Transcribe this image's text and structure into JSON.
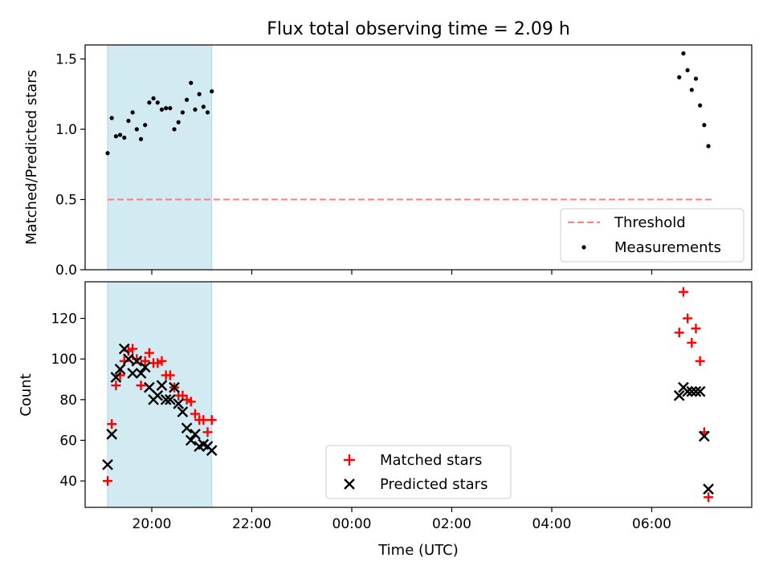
{
  "figure": {
    "title": "Flux total observing time = 2.09 h",
    "xlabel": "Time (UTC)",
    "shade_color": "#add8e6"
  },
  "chart_data": [
    {
      "type": "scatter",
      "ylabel": "Matched/Predicted stars",
      "xlim": [
        "18:40",
        "08:00"
      ],
      "ylim": [
        0,
        1.6
      ],
      "yticks": [
        0.0,
        0.5,
        1.0,
        1.5
      ],
      "ytick_labels": [
        "0.0",
        "0.5",
        "1.0",
        "1.5"
      ],
      "shaded_span": [
        "19:07",
        "21:12"
      ],
      "threshold": {
        "name": "Threshold",
        "value": 0.5,
        "x_range": [
          "19:07",
          "07:13"
        ],
        "color": "#ff7f7f",
        "style": "dashed"
      },
      "series": [
        {
          "name": "Measurements",
          "marker": "dot",
          "color": "#000000",
          "points": [
            {
              "x": "19:07",
              "y": 0.83
            },
            {
              "x": "19:12",
              "y": 1.08
            },
            {
              "x": "19:17",
              "y": 0.95
            },
            {
              "x": "19:22",
              "y": 0.96
            },
            {
              "x": "19:27",
              "y": 0.94
            },
            {
              "x": "19:32",
              "y": 1.06
            },
            {
              "x": "19:37",
              "y": 1.12
            },
            {
              "x": "19:42",
              "y": 1.0
            },
            {
              "x": "19:47",
              "y": 0.93
            },
            {
              "x": "19:52",
              "y": 1.03
            },
            {
              "x": "19:57",
              "y": 1.19
            },
            {
              "x": "20:02",
              "y": 1.22
            },
            {
              "x": "20:07",
              "y": 1.19
            },
            {
              "x": "20:12",
              "y": 1.14
            },
            {
              "x": "20:17",
              "y": 1.15
            },
            {
              "x": "20:22",
              "y": 1.15
            },
            {
              "x": "20:27",
              "y": 1.0
            },
            {
              "x": "20:32",
              "y": 1.05
            },
            {
              "x": "20:37",
              "y": 1.12
            },
            {
              "x": "20:42",
              "y": 1.21
            },
            {
              "x": "20:47",
              "y": 1.33
            },
            {
              "x": "20:52",
              "y": 1.14
            },
            {
              "x": "20:57",
              "y": 1.25
            },
            {
              "x": "21:02",
              "y": 1.16
            },
            {
              "x": "21:07",
              "y": 1.12
            },
            {
              "x": "21:12",
              "y": 1.27
            },
            {
              "x": "06:33",
              "y": 1.37
            },
            {
              "x": "06:38",
              "y": 1.54
            },
            {
              "x": "06:43",
              "y": 1.42
            },
            {
              "x": "06:48",
              "y": 1.28
            },
            {
              "x": "06:53",
              "y": 1.36
            },
            {
              "x": "06:58",
              "y": 1.17
            },
            {
              "x": "07:03",
              "y": 1.03
            },
            {
              "x": "07:08",
              "y": 0.88
            }
          ]
        }
      ],
      "legend": {
        "position": "lower-right",
        "entries": [
          "Threshold",
          "Measurements"
        ]
      }
    },
    {
      "type": "scatter",
      "ylabel": "Count",
      "xlabel": "Time (UTC)",
      "xlim": [
        "18:40",
        "08:00"
      ],
      "ylim": [
        27,
        138
      ],
      "yticks": [
        40,
        60,
        80,
        100,
        120
      ],
      "ytick_labels": [
        "40",
        "60",
        "80",
        "100",
        "120"
      ],
      "xticks": [
        "20:00",
        "22:00",
        "00:00",
        "02:00",
        "04:00",
        "06:00"
      ],
      "shaded_span": [
        "19:07",
        "21:12"
      ],
      "series": [
        {
          "name": "Matched stars",
          "marker": "plus",
          "color": "#ff0000",
          "points": [
            {
              "x": "19:07",
              "y": 40
            },
            {
              "x": "19:12",
              "y": 68
            },
            {
              "x": "19:17",
              "y": 87
            },
            {
              "x": "19:22",
              "y": 92
            },
            {
              "x": "19:27",
              "y": 99
            },
            {
              "x": "19:32",
              "y": 104
            },
            {
              "x": "19:37",
              "y": 105
            },
            {
              "x": "19:42",
              "y": 100
            },
            {
              "x": "19:47",
              "y": 87
            },
            {
              "x": "19:52",
              "y": 99
            },
            {
              "x": "19:57",
              "y": 103
            },
            {
              "x": "20:02",
              "y": 98
            },
            {
              "x": "20:07",
              "y": 98
            },
            {
              "x": "20:12",
              "y": 99
            },
            {
              "x": "20:17",
              "y": 92
            },
            {
              "x": "20:22",
              "y": 92
            },
            {
              "x": "20:27",
              "y": 86
            },
            {
              "x": "20:32",
              "y": 82
            },
            {
              "x": "20:37",
              "y": 82
            },
            {
              "x": "20:42",
              "y": 80
            },
            {
              "x": "20:47",
              "y": 79
            },
            {
              "x": "20:52",
              "y": 73
            },
            {
              "x": "20:57",
              "y": 70
            },
            {
              "x": "21:02",
              "y": 70
            },
            {
              "x": "21:07",
              "y": 64
            },
            {
              "x": "21:12",
              "y": 70
            },
            {
              "x": "06:33",
              "y": 113
            },
            {
              "x": "06:38",
              "y": 133
            },
            {
              "x": "06:43",
              "y": 120
            },
            {
              "x": "06:48",
              "y": 108
            },
            {
              "x": "06:53",
              "y": 115
            },
            {
              "x": "06:58",
              "y": 99
            },
            {
              "x": "07:03",
              "y": 64
            },
            {
              "x": "07:08",
              "y": 32
            }
          ]
        },
        {
          "name": "Predicted stars",
          "marker": "x",
          "color": "#000000",
          "points": [
            {
              "x": "19:07",
              "y": 48
            },
            {
              "x": "19:12",
              "y": 63
            },
            {
              "x": "19:17",
              "y": 91
            },
            {
              "x": "19:22",
              "y": 95
            },
            {
              "x": "19:27",
              "y": 105
            },
            {
              "x": "19:32",
              "y": 100
            },
            {
              "x": "19:37",
              "y": 93
            },
            {
              "x": "19:42",
              "y": 99
            },
            {
              "x": "19:47",
              "y": 93
            },
            {
              "x": "19:52",
              "y": 96
            },
            {
              "x": "19:57",
              "y": 86
            },
            {
              "x": "20:02",
              "y": 80
            },
            {
              "x": "20:07",
              "y": 82
            },
            {
              "x": "20:12",
              "y": 87
            },
            {
              "x": "20:17",
              "y": 80
            },
            {
              "x": "20:22",
              "y": 80
            },
            {
              "x": "20:27",
              "y": 86
            },
            {
              "x": "20:32",
              "y": 78
            },
            {
              "x": "20:37",
              "y": 74
            },
            {
              "x": "20:42",
              "y": 66
            },
            {
              "x": "20:47",
              "y": 60
            },
            {
              "x": "20:52",
              "y": 63
            },
            {
              "x": "20:57",
              "y": 57
            },
            {
              "x": "21:02",
              "y": 58
            },
            {
              "x": "21:07",
              "y": 57
            },
            {
              "x": "21:12",
              "y": 55
            },
            {
              "x": "06:33",
              "y": 82
            },
            {
              "x": "06:38",
              "y": 86
            },
            {
              "x": "06:43",
              "y": 84
            },
            {
              "x": "06:48",
              "y": 84
            },
            {
              "x": "06:53",
              "y": 84
            },
            {
              "x": "06:58",
              "y": 84
            },
            {
              "x": "07:03",
              "y": 62
            },
            {
              "x": "07:08",
              "y": 36
            }
          ]
        }
      ],
      "legend": {
        "position": "lower-center",
        "entries": [
          "Matched stars",
          "Predicted stars"
        ]
      }
    }
  ]
}
